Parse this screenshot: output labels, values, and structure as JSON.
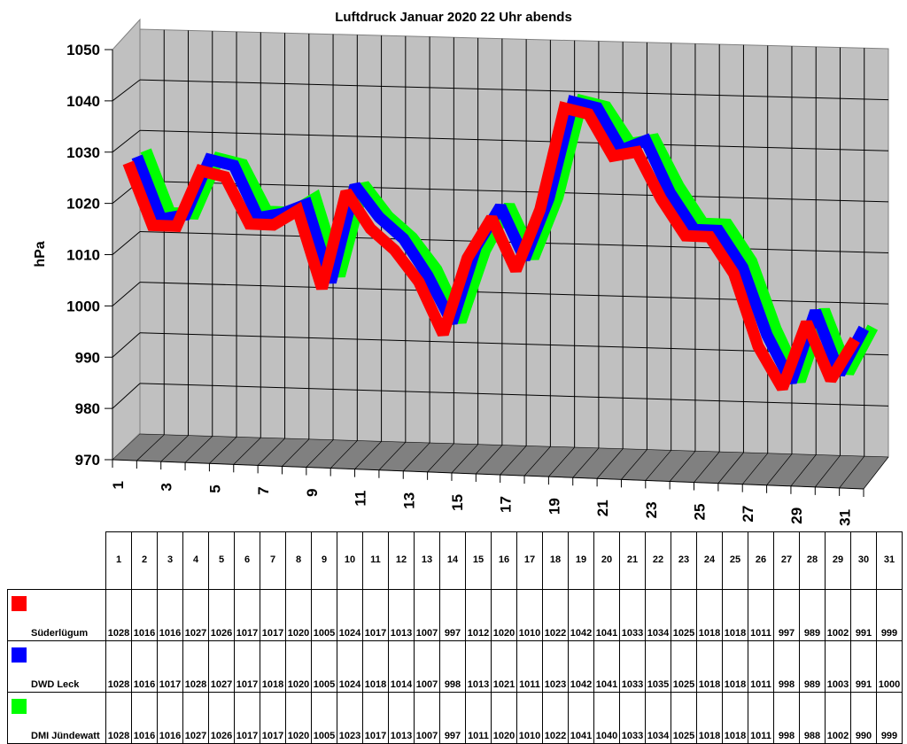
{
  "chart_data": {
    "type": "line",
    "title": "Luftdruck Januar 2020 22 Uhr abends",
    "xlabel": "",
    "ylabel": "hPa",
    "ylim": [
      970,
      1050
    ],
    "yticks": [
      970,
      980,
      990,
      1000,
      1010,
      1020,
      1030,
      1040,
      1050
    ],
    "x": [
      1,
      2,
      3,
      4,
      5,
      6,
      7,
      8,
      9,
      10,
      11,
      12,
      13,
      14,
      15,
      16,
      17,
      18,
      19,
      20,
      21,
      22,
      23,
      24,
      25,
      26,
      27,
      28,
      29,
      30,
      31
    ],
    "xtick_labels": [
      "1",
      "3",
      "5",
      "7",
      "9",
      "11",
      "13",
      "15",
      "17",
      "19",
      "21",
      "23",
      "25",
      "27",
      "29",
      "31"
    ],
    "grid": true,
    "style": "3d-ribbon",
    "legend_position": "table-below",
    "series": [
      {
        "name": "Süderlügum",
        "color": "#ff0000",
        "values": [
          1028,
          1016,
          1016,
          1027,
          1026,
          1017,
          1017,
          1020,
          1005,
          1024,
          1017,
          1013,
          1007,
          997,
          1012,
          1020,
          1010,
          1022,
          1042,
          1041,
          1033,
          1034,
          1025,
          1018,
          1018,
          1011,
          997,
          989,
          1002,
          991,
          999
        ]
      },
      {
        "name": "DWD Leck",
        "color": "#0000ff",
        "values": [
          1028,
          1016,
          1017,
          1028,
          1027,
          1017,
          1018,
          1020,
          1005,
          1024,
          1018,
          1014,
          1007,
          998,
          1013,
          1021,
          1011,
          1023,
          1042,
          1041,
          1033,
          1035,
          1025,
          1018,
          1018,
          1011,
          998,
          989,
          1003,
          991,
          1000
        ]
      },
      {
        "name": "DMI Jündewatt",
        "color": "#00ff00",
        "values": [
          1028,
          1016,
          1016,
          1027,
          1026,
          1017,
          1017,
          1020,
          1005,
          1023,
          1017,
          1013,
          1007,
          997,
          1011,
          1020,
          1010,
          1022,
          1041,
          1040,
          1033,
          1034,
          1025,
          1018,
          1018,
          1011,
          998,
          988,
          1002,
          990,
          999
        ]
      }
    ]
  },
  "table": {
    "header": [
      "1",
      "2",
      "3",
      "4",
      "5",
      "6",
      "7",
      "8",
      "9",
      "10",
      "11",
      "12",
      "13",
      "14",
      "15",
      "16",
      "17",
      "18",
      "19",
      "20",
      "21",
      "22",
      "23",
      "24",
      "25",
      "26",
      "27",
      "28",
      "29",
      "30",
      "31"
    ]
  },
  "colors": {
    "wall": "#c0c0c0",
    "floor": "#808080",
    "grid": "#000000"
  }
}
